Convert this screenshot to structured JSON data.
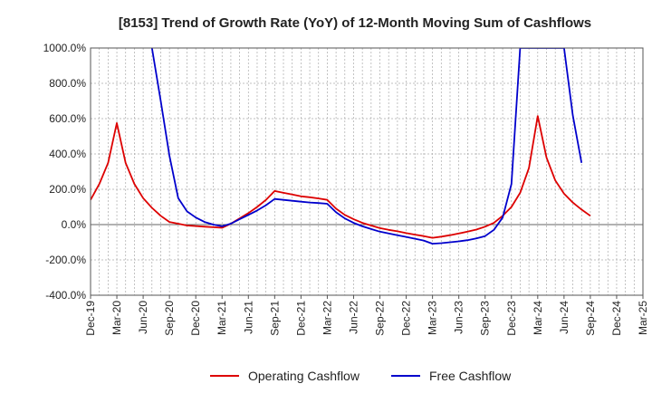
{
  "chart_data": {
    "type": "line",
    "title": "[8153]  Trend of Growth Rate (YoY) of 12-Month Moving Sum of Cashflows",
    "xlabel": "",
    "ylabel": "",
    "ylim": [
      -400,
      1000
    ],
    "y_ticks": [
      1000,
      800,
      600,
      400,
      200,
      0,
      -200,
      -400
    ],
    "y_tick_labels": [
      "1000.0%",
      "800.0%",
      "600.0%",
      "400.0%",
      "200.0%",
      "0.0%",
      "-200.0%",
      "-400.0%"
    ],
    "x_tick_labels": [
      "Dec-19",
      "Mar-20",
      "Jun-20",
      "Sep-20",
      "Dec-20",
      "Mar-21",
      "Jun-21",
      "Sep-21",
      "Dec-21",
      "Mar-22",
      "Jun-22",
      "Sep-22",
      "Dec-22",
      "Mar-23",
      "Jun-23",
      "Sep-23",
      "Dec-23",
      "Mar-24",
      "Jun-24",
      "Sep-24",
      "Dec-24",
      "Mar-25"
    ],
    "x_start": "Dec-19",
    "x_end": "Mar-25",
    "grid": true,
    "legend_position": "bottom",
    "series": [
      {
        "name": "Operating Cashflow",
        "color": "#dd0000",
        "points": [
          [
            "Dec-19",
            140
          ],
          [
            "Jan-20",
            230
          ],
          [
            "Feb-20",
            350
          ],
          [
            "Mar-20",
            575
          ],
          [
            "Apr-20",
            350
          ],
          [
            "May-20",
            230
          ],
          [
            "Jun-20",
            150
          ],
          [
            "Jul-20",
            95
          ],
          [
            "Aug-20",
            50
          ],
          [
            "Sep-20",
            15
          ],
          [
            "Oct-20",
            5
          ],
          [
            "Nov-20",
            -5
          ],
          [
            "Dec-20",
            -8
          ],
          [
            "Jan-21",
            -12
          ],
          [
            "Feb-21",
            -15
          ],
          [
            "Mar-21",
            -18
          ],
          [
            "Apr-21",
            5
          ],
          [
            "May-21",
            35
          ],
          [
            "Jun-21",
            65
          ],
          [
            "Jul-21",
            100
          ],
          [
            "Aug-21",
            140
          ],
          [
            "Sep-21",
            190
          ],
          [
            "Oct-21",
            180
          ],
          [
            "Nov-21",
            170
          ],
          [
            "Dec-21",
            160
          ],
          [
            "Jan-22",
            155
          ],
          [
            "Feb-22",
            148
          ],
          [
            "Mar-22",
            140
          ],
          [
            "Apr-22",
            90
          ],
          [
            "May-22",
            55
          ],
          [
            "Jun-22",
            30
          ],
          [
            "Jul-22",
            10
          ],
          [
            "Aug-22",
            -5
          ],
          [
            "Sep-22",
            -20
          ],
          [
            "Oct-22",
            -30
          ],
          [
            "Nov-22",
            -38
          ],
          [
            "Dec-22",
            -48
          ],
          [
            "Jan-23",
            -57
          ],
          [
            "Feb-23",
            -65
          ],
          [
            "Mar-23",
            -75
          ],
          [
            "Apr-23",
            -68
          ],
          [
            "May-23",
            -60
          ],
          [
            "Jun-23",
            -50
          ],
          [
            "Jul-23",
            -40
          ],
          [
            "Aug-23",
            -28
          ],
          [
            "Sep-23",
            -12
          ],
          [
            "Oct-23",
            10
          ],
          [
            "Nov-23",
            50
          ],
          [
            "Dec-23",
            100
          ],
          [
            "Jan-24",
            180
          ],
          [
            "Feb-24",
            320
          ],
          [
            "Mar-24",
            615
          ],
          [
            "Apr-24",
            380
          ],
          [
            "May-24",
            250
          ],
          [
            "Jun-24",
            175
          ],
          [
            "Jul-24",
            125
          ],
          [
            "Aug-24",
            85
          ],
          [
            "Sep-24",
            50
          ]
        ]
      },
      {
        "name": "Free Cashflow",
        "color": "#0000cc",
        "points": [
          [
            "Jul-20",
            1000
          ],
          [
            "Aug-20",
            700
          ],
          [
            "Sep-20",
            390
          ],
          [
            "Oct-20",
            150
          ],
          [
            "Nov-20",
            75
          ],
          [
            "Dec-20",
            40
          ],
          [
            "Jan-21",
            15
          ],
          [
            "Feb-21",
            0
          ],
          [
            "Mar-21",
            -10
          ],
          [
            "Apr-21",
            5
          ],
          [
            "May-21",
            30
          ],
          [
            "Jun-21",
            55
          ],
          [
            "Jul-21",
            80
          ],
          [
            "Aug-21",
            110
          ],
          [
            "Sep-21",
            145
          ],
          [
            "Oct-21",
            140
          ],
          [
            "Nov-21",
            135
          ],
          [
            "Dec-21",
            130
          ],
          [
            "Jan-22",
            125
          ],
          [
            "Feb-22",
            122
          ],
          [
            "Mar-22",
            118
          ],
          [
            "Apr-22",
            70
          ],
          [
            "May-22",
            35
          ],
          [
            "Jun-22",
            10
          ],
          [
            "Jul-22",
            -10
          ],
          [
            "Aug-22",
            -25
          ],
          [
            "Sep-22",
            -40
          ],
          [
            "Oct-22",
            -50
          ],
          [
            "Nov-22",
            -60
          ],
          [
            "Dec-22",
            -70
          ],
          [
            "Jan-23",
            -80
          ],
          [
            "Feb-23",
            -90
          ],
          [
            "Mar-23",
            -108
          ],
          [
            "Apr-23",
            -105
          ],
          [
            "May-23",
            -100
          ],
          [
            "Jun-23",
            -95
          ],
          [
            "Jul-23",
            -88
          ],
          [
            "Aug-23",
            -78
          ],
          [
            "Sep-23",
            -65
          ],
          [
            "Oct-23",
            -30
          ],
          [
            "Nov-23",
            40
          ],
          [
            "Dec-23",
            230
          ],
          [
            "Jan-24",
            1000
          ],
          [
            "Jun-24",
            1000
          ],
          [
            "Jul-24",
            620
          ],
          [
            "Aug-24",
            350
          ]
        ]
      }
    ]
  }
}
